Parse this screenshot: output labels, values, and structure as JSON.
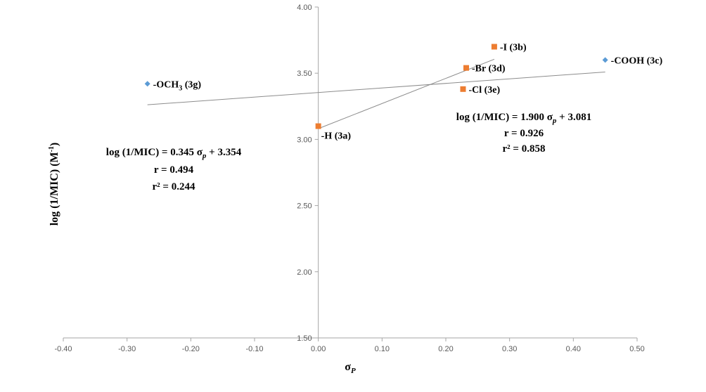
{
  "chart_data": {
    "type": "scatter",
    "xlabel": "σ",
    "xlabel_sub": "P",
    "ylabel": "log (1/MIC) (M",
    "ylabel_sup": "-1",
    "ylabel_end": ")",
    "xlim": [
      -0.4,
      0.5
    ],
    "ylim": [
      1.5,
      4.0
    ],
    "x_ticks": [
      "-0.40",
      "-0.30",
      "-0.20",
      "-0.10",
      "0.00",
      "0.10",
      "0.20",
      "0.30",
      "0.40",
      "0.50"
    ],
    "y_ticks": [
      "1.50",
      "2.00",
      "2.50",
      "3.00",
      "3.50",
      "4.00"
    ],
    "grid": false,
    "series": [
      {
        "marker": "diamond",
        "color": "#5b9bd5",
        "points": [
          {
            "x": -0.268,
            "y": 3.42,
            "label": "-OCH",
            "sub": "3",
            "suffix": " (3g)"
          },
          {
            "x": 0.45,
            "y": 3.6,
            "label": "-COOH (3c)"
          }
        ],
        "trendline": {
          "slope": 0.345,
          "intercept": 3.354,
          "x_range": [
            -0.268,
            0.45
          ]
        },
        "equation": {
          "lhs": "log (1/MIC) = 0.345 σ",
          "sub": "p",
          "rhs": " + 3.354",
          "r": "r = 0.494",
          "r2": "r² = 0.244"
        }
      },
      {
        "marker": "square",
        "color": "#ed7d31",
        "points": [
          {
            "x": 0.0,
            "y": 3.1,
            "label": "-H (3a)"
          },
          {
            "x": 0.276,
            "y": 3.7,
            "label": "-I (3b)"
          },
          {
            "x": 0.232,
            "y": 3.54,
            "label": "-Br (3d)"
          },
          {
            "x": 0.227,
            "y": 3.38,
            "label": "-Cl (3e)"
          }
        ],
        "trendline": {
          "slope": 1.9,
          "intercept": 3.081,
          "x_range": [
            0.0,
            0.276
          ]
        },
        "equation": {
          "lhs": "log (1/MIC) = 1.900 σ",
          "sub": "p",
          "rhs": " + 3.081",
          "r": "r = 0.926",
          "r2": "r² = 0.858"
        }
      }
    ]
  }
}
